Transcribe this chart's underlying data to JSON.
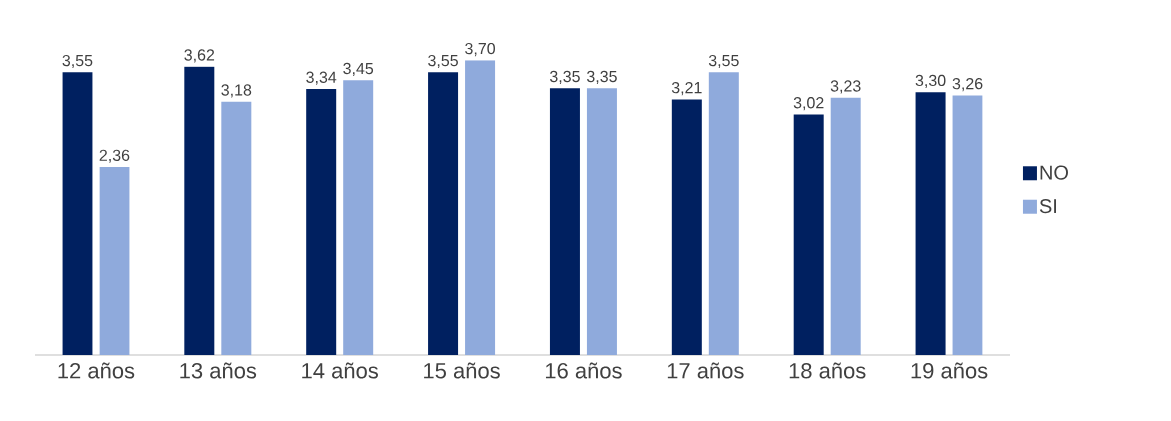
{
  "chart_data": {
    "type": "bar",
    "categories": [
      "12 años",
      "13 años",
      "14 años",
      "15 años",
      "16 años",
      "17 años",
      "18 años",
      "19 años"
    ],
    "series": [
      {
        "name": "NO",
        "color": "#002060",
        "values": [
          3.55,
          3.62,
          3.34,
          3.55,
          3.35,
          3.21,
          3.02,
          3.3
        ],
        "value_labels": [
          "3,55",
          "3,62",
          "3,34",
          "3,55",
          "3,35",
          "3,21",
          "3,02",
          "3,30"
        ]
      },
      {
        "name": "SI",
        "color": "#8faadc",
        "values": [
          2.36,
          3.18,
          3.45,
          3.7,
          3.35,
          3.55,
          3.23,
          3.26
        ],
        "value_labels": [
          "2,36",
          "3,18",
          "3,45",
          "3,70",
          "3,35",
          "3,55",
          "3,23",
          "3,26"
        ]
      }
    ],
    "legend": "right"
  }
}
